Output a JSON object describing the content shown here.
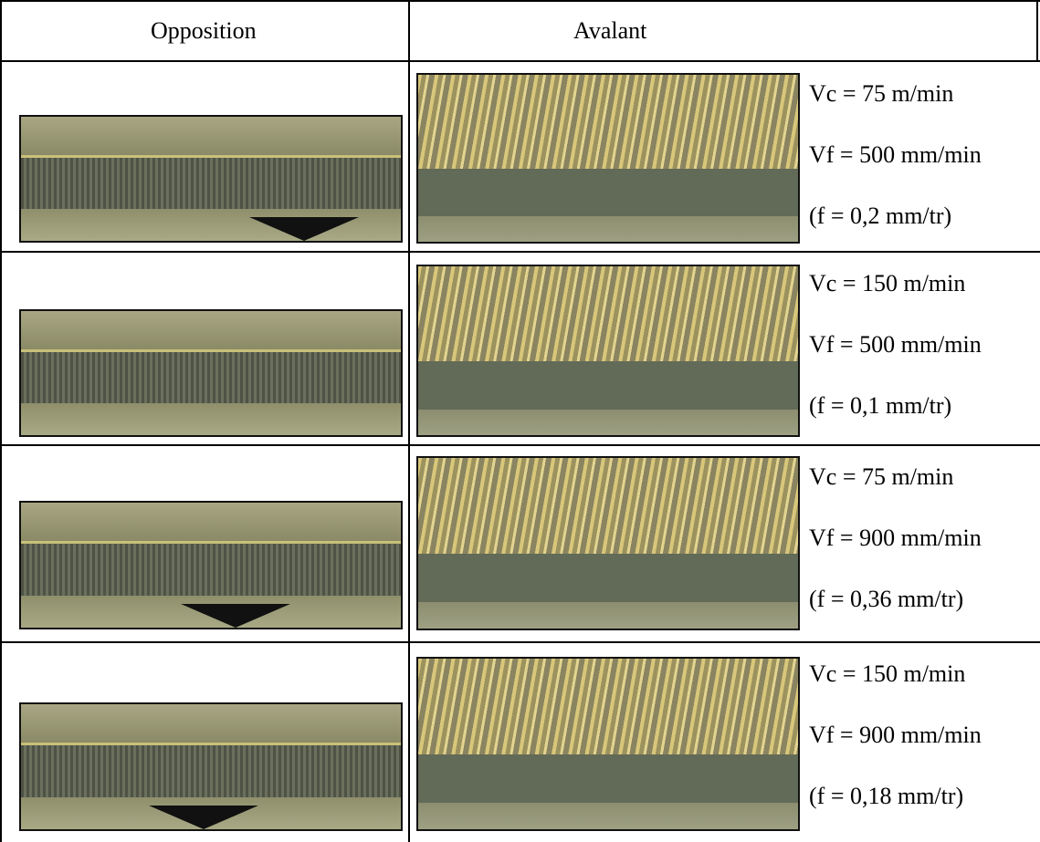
{
  "header": {
    "left": "Opposition",
    "right": "Avalant"
  },
  "rows": [
    {
      "vc": "Vc = 75 m/min",
      "vf": "Vf = 500 mm/min",
      "f": "(f = 0,2 mm/tr)"
    },
    {
      "vc": "Vc = 150 m/min",
      "vf": "Vf = 500 mm/min",
      "f": "(f = 0,1 mm/tr)"
    },
    {
      "vc": "Vc = 75 m/min",
      "vf": "Vf = 900 mm/min",
      "f": "(f = 0,36 mm/tr)"
    },
    {
      "vc": "Vc = 150 m/min",
      "vf": "Vf = 900 mm/min",
      "f": "(f = 0,18 mm/tr)"
    }
  ]
}
